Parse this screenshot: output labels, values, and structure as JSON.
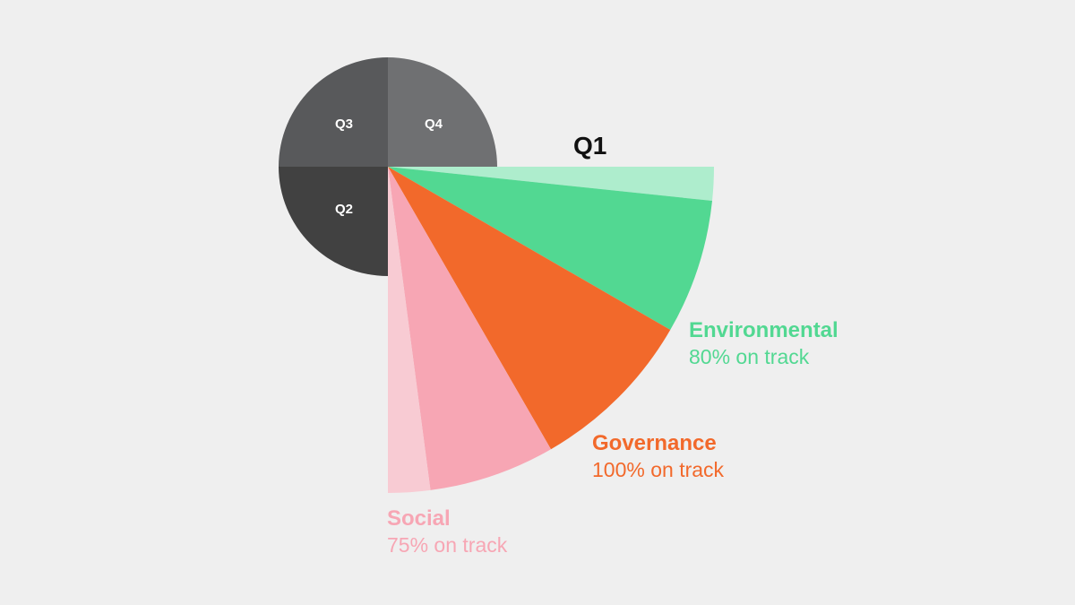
{
  "chart_data": {
    "type": "pie",
    "quarters": [
      {
        "label": "Q2",
        "color": "#414141"
      },
      {
        "label": "Q3",
        "color": "#58595b"
      },
      {
        "label": "Q4",
        "color": "#6f7072"
      }
    ],
    "focus_quarter": {
      "label": "Q1",
      "categories": [
        {
          "name": "Environmental",
          "status": "80% on track",
          "percent_on_track": 80,
          "color": "#52d892",
          "light_color": "#aeedcd"
        },
        {
          "name": "Governance",
          "status": "100% on track",
          "percent_on_track": 100,
          "color": "#f2692b",
          "light_color": "#f2692b"
        },
        {
          "name": "Social",
          "status": "75% on track",
          "percent_on_track": 75,
          "color": "#f7a6b4",
          "light_color": "#f8cbd3"
        }
      ]
    }
  }
}
